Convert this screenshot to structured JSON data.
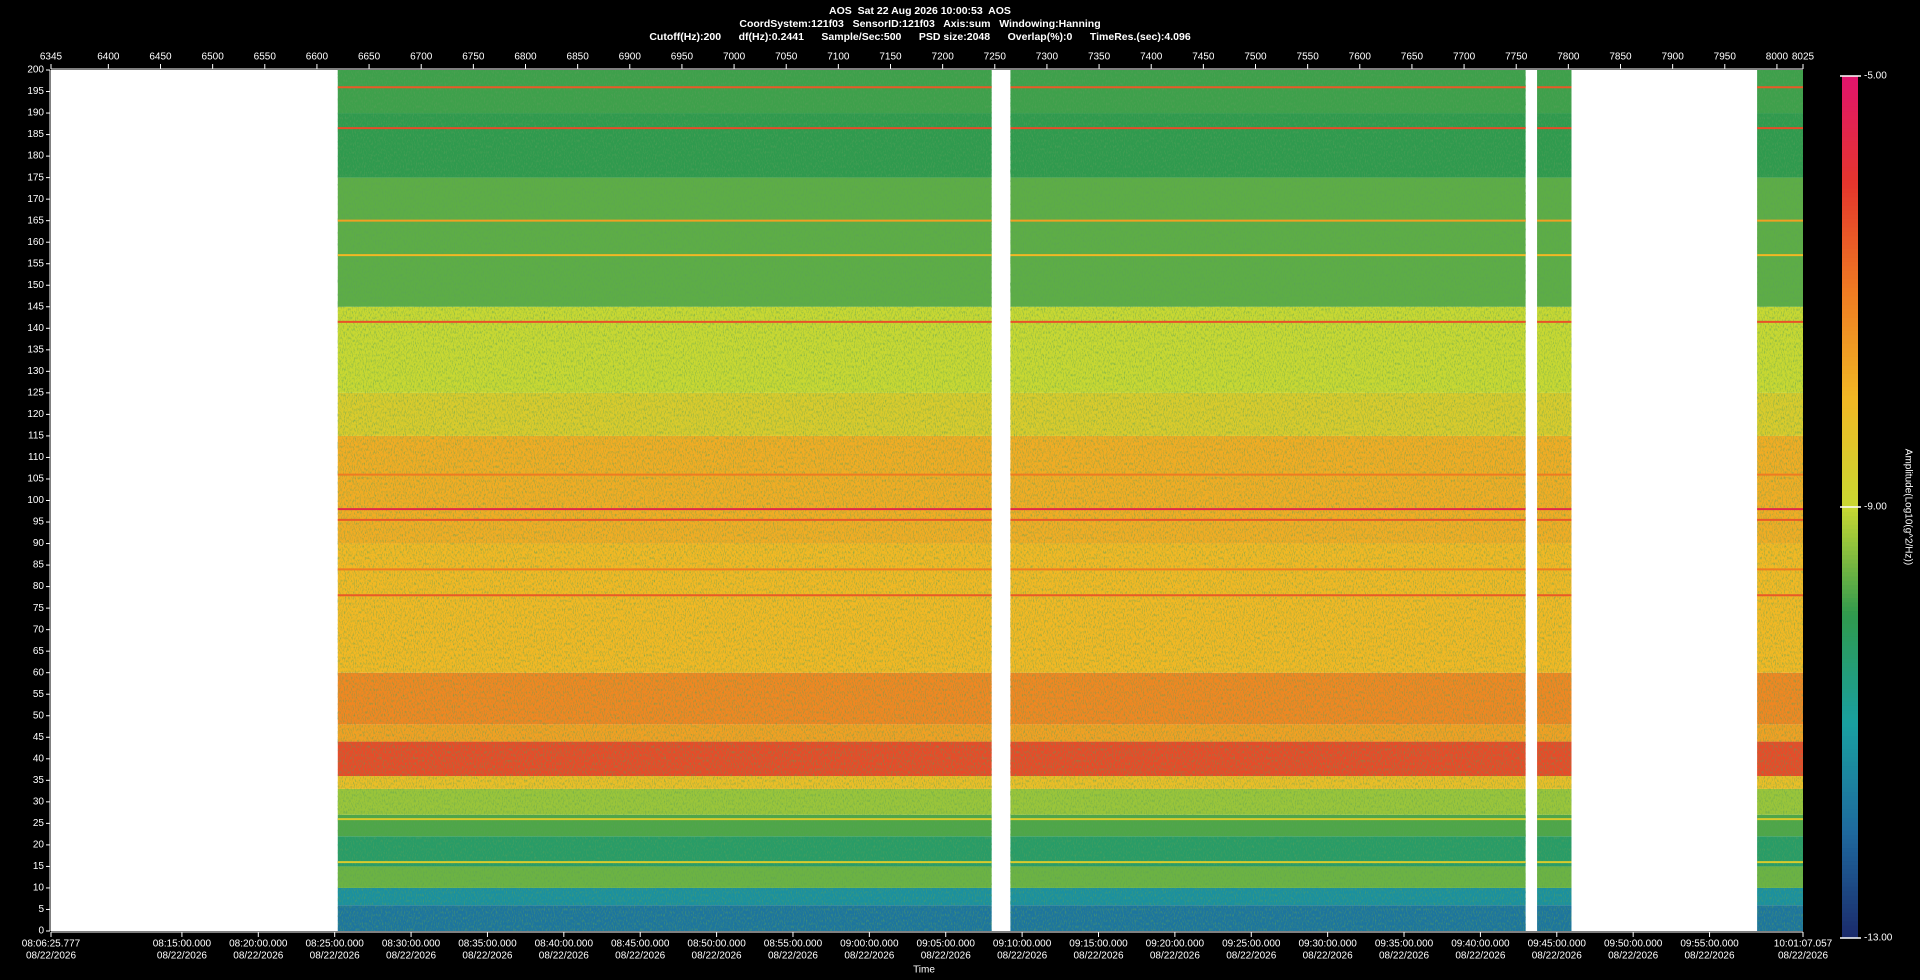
{
  "chart_data": {
    "type": "spectrogram",
    "title": [
      "AOS  Sat 22 Aug 2026 10:00:53  AOS",
      "CoordSystem:121f03   SensorID:121f03   Axis:sum   Windowing:Hanning",
      "Cutoff(Hz):200      df(Hz):0.2441      Sample/Sec:500      PSD size:2048      Overlap(%):0      TimeRes.(sec):4.096"
    ],
    "xlabel": "Time",
    "xlim": [
      "08:06:25.777",
      "10:01:07.057"
    ],
    "xticks": [
      {
        "time": "08:06:25.777",
        "date": "08/22/2026"
      },
      {
        "time": "08:15:00.000",
        "date": "08/22/2026"
      },
      {
        "time": "08:20:00.000",
        "date": "08/22/2026"
      },
      {
        "time": "08:25:00.000",
        "date": "08/22/2026"
      },
      {
        "time": "08:30:00.000",
        "date": "08/22/2026"
      },
      {
        "time": "08:35:00.000",
        "date": "08/22/2026"
      },
      {
        "time": "08:40:00.000",
        "date": "08/22/2026"
      },
      {
        "time": "08:45:00.000",
        "date": "08/22/2026"
      },
      {
        "time": "08:50:00.000",
        "date": "08/22/2026"
      },
      {
        "time": "08:55:00.000",
        "date": "08/22/2026"
      },
      {
        "time": "09:00:00.000",
        "date": "08/22/2026"
      },
      {
        "time": "09:05:00.000",
        "date": "08/22/2026"
      },
      {
        "time": "09:10:00.000",
        "date": "08/22/2026"
      },
      {
        "time": "09:15:00.000",
        "date": "08/22/2026"
      },
      {
        "time": "09:20:00.000",
        "date": "08/22/2026"
      },
      {
        "time": "09:25:00.000",
        "date": "08/22/2026"
      },
      {
        "time": "09:30:00.000",
        "date": "08/22/2026"
      },
      {
        "time": "09:35:00.000",
        "date": "08/22/2026"
      },
      {
        "time": "09:40:00.000",
        "date": "08/22/2026"
      },
      {
        "time": "09:45:00.000",
        "date": "08/22/2026"
      },
      {
        "time": "09:50:00.000",
        "date": "08/22/2026"
      },
      {
        "time": "09:55:00.000",
        "date": "08/22/2026"
      },
      {
        "time": "10:01:07.057",
        "date": "08/22/2026"
      }
    ],
    "x2lim": [
      6345,
      8025
    ],
    "x2ticks": [
      6345,
      6400,
      6450,
      6500,
      6550,
      6600,
      6650,
      6700,
      6750,
      6800,
      6850,
      6900,
      6950,
      7000,
      7050,
      7100,
      7150,
      7200,
      7250,
      7300,
      7350,
      7400,
      7450,
      7500,
      7550,
      7600,
      7650,
      7700,
      7750,
      7800,
      7850,
      7900,
      7950,
      8000,
      8025
    ],
    "ylim": [
      0,
      200
    ],
    "yticks": [
      0,
      5,
      10,
      15,
      20,
      25,
      30,
      35,
      40,
      45,
      50,
      55,
      60,
      65,
      70,
      75,
      80,
      85,
      90,
      95,
      100,
      105,
      110,
      115,
      120,
      125,
      130,
      135,
      140,
      145,
      150,
      155,
      160,
      165,
      170,
      175,
      180,
      185,
      190,
      195,
      200
    ],
    "segments": {
      "start": [
        6620,
        7265,
        7770,
        7981
      ],
      "end": [
        7247,
        7759,
        7803,
        8025
      ]
    },
    "bands": {
      "edges": [
        0,
        6,
        10,
        15,
        22,
        27,
        33,
        36,
        44,
        48,
        60,
        90,
        115,
        125,
        145,
        175,
        190,
        200
      ],
      "amplitude": [
        -11.8,
        -11.3,
        -9.6,
        -10.3,
        -9.8,
        -9.3,
        -8.2,
        -6.3,
        -7.6,
        -7.2,
        -8.0,
        -7.8,
        -8.6,
        -9.0,
        -9.7,
        -10.0,
        -9.9
      ]
    },
    "lines": {
      "frequency": [
        196,
        186.5,
        165,
        157,
        141.5,
        106,
        98,
        95.5,
        84,
        78,
        26,
        16
      ],
      "amplitude": [
        -6.5,
        -6.3,
        -7.6,
        -8.0,
        -6.4,
        -7.0,
        -5.6,
        -6.5,
        -7.0,
        -6.5,
        -8.6,
        -8.6
      ]
    },
    "clabel": "Amplitude(Log10(g^2/Hz))",
    "clim": [
      -13,
      -5
    ],
    "cticks": [
      {
        "value": -13,
        "label": "-13.00"
      },
      {
        "value": -9,
        "label": "-9.00"
      },
      {
        "value": -5,
        "label": "-5.00"
      }
    ],
    "colorscale": [
      "#1b2a6b",
      "#1e6a9e",
      "#19a0a0",
      "#2f9a4e",
      "#c8d832",
      "#f2b824",
      "#ef7b22",
      "#e4362c",
      "#e0146c"
    ]
  }
}
